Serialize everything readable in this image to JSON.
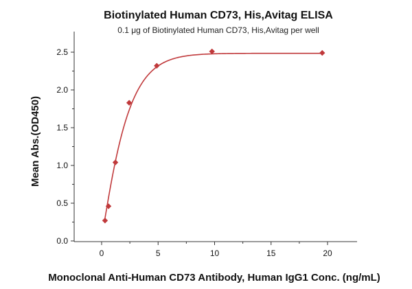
{
  "chart_data": {
    "type": "scatter",
    "title": "Biotinylated Human CD73, His,Avitag ELISA",
    "subtitle": "0.1 μg of Biotinylated Human CD73, His,Avitag per well",
    "xlabel": "Monoclonal Anti-Human CD73 Antibody, Human IgG1 Conc. (ng/mL)",
    "ylabel": "Mean Abs.(OD450)",
    "xlim": [
      -2.5,
      22
    ],
    "ylim": [
      0,
      2.7
    ],
    "x_ticks": [
      0,
      5,
      10,
      15,
      20
    ],
    "y_ticks": [
      0.0,
      0.5,
      1.0,
      1.5,
      2.0,
      2.5
    ],
    "x_tick_labels": [
      "0",
      "5",
      "10",
      "15",
      "20"
    ],
    "y_tick_labels": [
      "0.0",
      "0.5",
      "1.0",
      "1.5",
      "2.0",
      "2.5"
    ],
    "grid": false,
    "color": "#c0393b",
    "marker": "diamond",
    "series": [
      {
        "x": [
          0.3,
          0.61,
          1.22,
          2.44,
          4.88,
          9.77,
          19.53
        ],
        "y": [
          0.27,
          0.46,
          1.04,
          1.83,
          2.32,
          2.51,
          2.49
        ],
        "fit": "sigmoidal"
      }
    ]
  }
}
